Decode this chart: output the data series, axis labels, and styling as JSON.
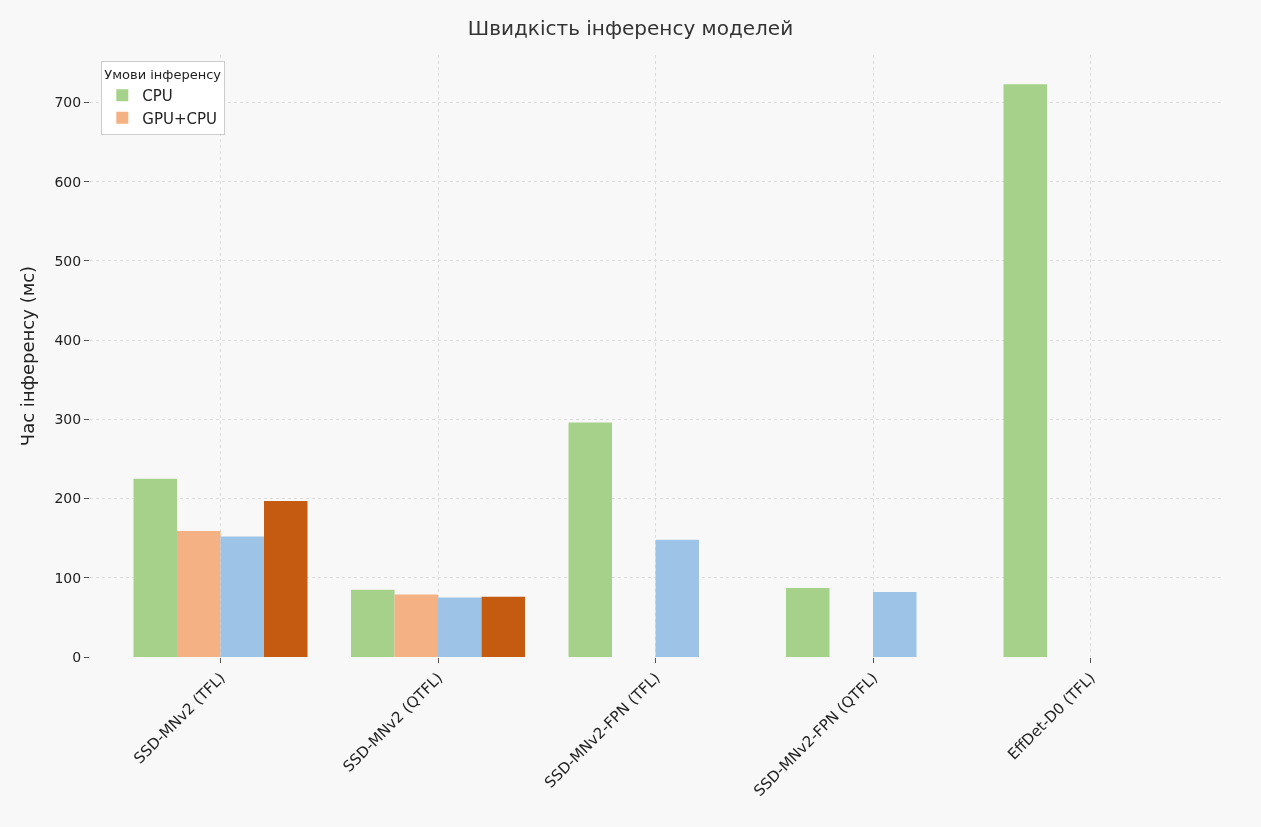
{
  "chart_data": {
    "type": "bar",
    "title": "Швидкість інференсу моделей",
    "ylabel": "Час інференсу (мс)",
    "legend_title": "Умови інференсу",
    "categories": [
      "SSD-MNv2 (TFL)",
      "SSD-MNv2 (QTFL)",
      "SSD-MNv2-FPN (TFL)",
      "SSD-MNv2-FPN (QTFL)",
      "EffDet-D0 (TFL)"
    ],
    "series": [
      {
        "name": "CPU",
        "color": "#a6d18b",
        "values": [
          225,
          85,
          296,
          87,
          723
        ]
      },
      {
        "name": "GPU+CPU",
        "color": "#f4b183",
        "values": [
          159,
          79,
          null,
          null,
          null
        ]
      },
      {
        "color": "#9dc3e6",
        "values": [
          152,
          75,
          148,
          82,
          null
        ]
      },
      {
        "color": "#c55a11",
        "values": [
          197,
          76,
          null,
          null,
          null
        ]
      }
    ],
    "ylim": [
      0,
      760
    ],
    "yticks": [
      0,
      100,
      200,
      300,
      400,
      500,
      600,
      700
    ],
    "grid": true,
    "legend": "top left"
  }
}
